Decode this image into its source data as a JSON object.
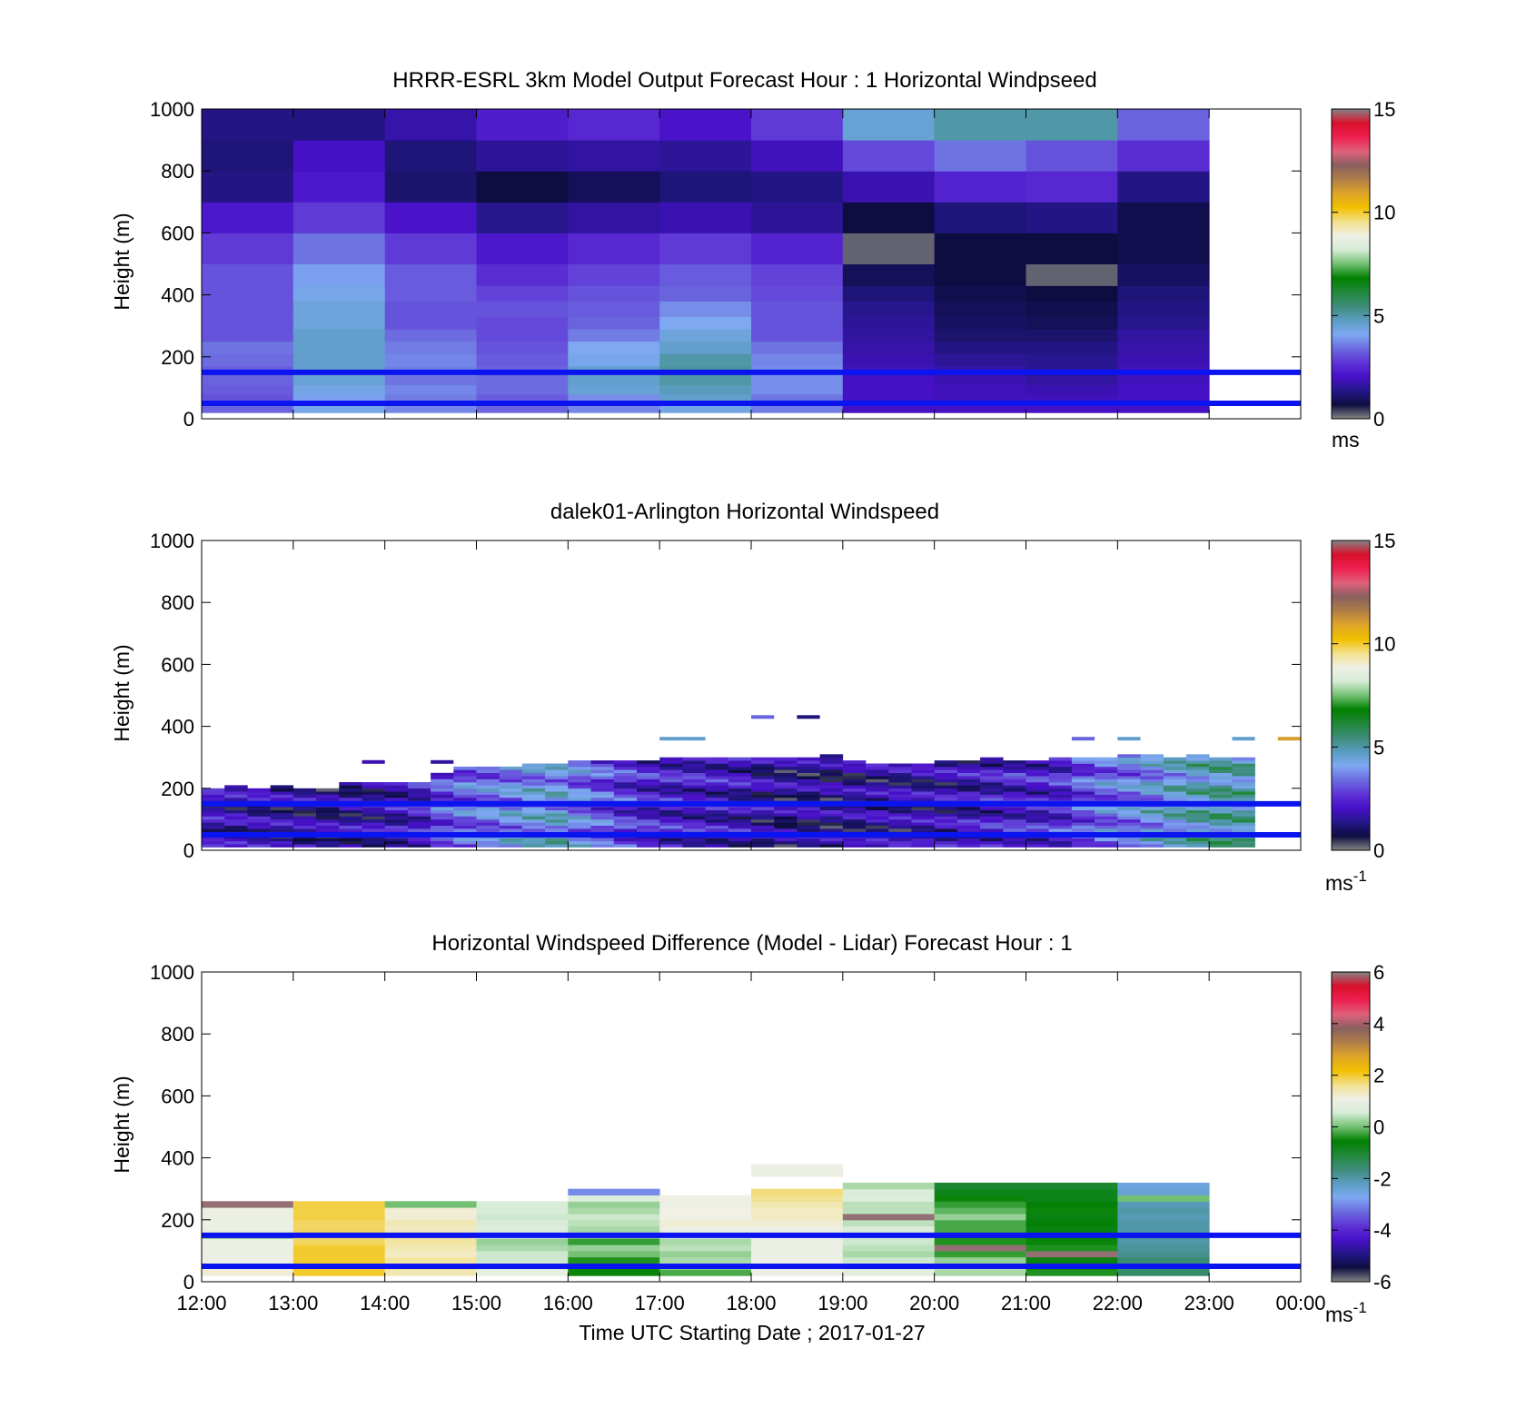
{
  "colors": {
    "line_blue": "#0a14f0",
    "colormap": [
      "#858585",
      "#0d0d40",
      "#25168a",
      "#4810c8",
      "#5e34d6",
      "#6c6ce0",
      "#7ea8f2",
      "#5a9cc0",
      "#3d8c78",
      "#21883a",
      "#008000",
      "#73c073",
      "#d6ecd6",
      "#f0f0e6",
      "#f2e08a",
      "#f2c000",
      "#dea428",
      "#b07e48",
      "#8a6060",
      "#e0607a",
      "#ee2050",
      "#d8102c",
      "#858585"
    ]
  },
  "x_ticks": [
    "12:00",
    "13:00",
    "14:00",
    "15:00",
    "16:00",
    "17:00",
    "18:00",
    "19:00",
    "20:00",
    "21:00",
    "22:00",
    "23:00",
    "00:00"
  ],
  "x_label": "Time UTC  Starting Date ; 2017-01-27",
  "reference_lines_m": [
    150,
    50
  ],
  "panels": [
    {
      "title": "HRRR-ESRL 3km Model Output   Forecast Hour : 1 Horizontal Windpseed",
      "ylabel": "Height (m)",
      "cbar_unit": "ms",
      "cbar_unit_sup": "",
      "cbar_range": [
        0,
        15
      ],
      "cbar_ticks": [
        "0",
        "5",
        "10",
        "15"
      ]
    },
    {
      "title": "dalek01-Arlington  Horizontal Windspeed",
      "ylabel": "Height (m)",
      "cbar_unit": "ms",
      "cbar_unit_sup": "-1",
      "cbar_range": [
        0,
        15
      ],
      "cbar_ticks": [
        "0",
        "5",
        "10",
        "15"
      ]
    },
    {
      "title": "Horizontal Windspeed Difference (Model - Lidar) Forecast Hour : 1",
      "ylabel": "Height (m)",
      "cbar_unit": "ms",
      "cbar_unit_sup": "-1",
      "cbar_range": [
        -6,
        6
      ],
      "cbar_ticks": [
        "-6",
        "-4",
        "-2",
        "0",
        "2",
        "4",
        "6"
      ]
    }
  ],
  "chart_data": [
    {
      "type": "heatmap",
      "title": "HRRR-ESRL 3km Model Output   Forecast Hour : 1 Horizontal Windpseed",
      "xlabel": "",
      "ylabel": "Height (m)",
      "x_range": [
        "12:00",
        "00:00"
      ],
      "ylim": [
        0,
        1000
      ],
      "y_ticks": [
        0,
        200,
        400,
        600,
        800,
        1000
      ],
      "value_range": [
        0,
        15
      ],
      "unit": "ms",
      "grid": false,
      "hours": [
        "12:00",
        "13:00",
        "14:00",
        "15:00",
        "16:00",
        "17:00",
        "18:00",
        "19:00",
        "20:00",
        "21:00",
        "22:00"
      ],
      "height_edges_m": [
        20,
        50,
        80,
        110,
        140,
        170,
        210,
        250,
        290,
        330,
        380,
        430,
        500,
        600,
        700,
        800,
        900,
        1000
      ],
      "speed_ms": [
        [
          4.0,
          3.5,
          3.5,
          3.5,
          3.5,
          3.5,
          3.5,
          2.0,
          2.0,
          2.0,
          2.0
        ],
        [
          3.3,
          4.2,
          3.7,
          3.3,
          3.7,
          4.3,
          3.6,
          2.0,
          2.0,
          2.0,
          2.0
        ],
        [
          3.1,
          4.0,
          3.6,
          3.2,
          3.8,
          4.6,
          3.5,
          2.0,
          1.9,
          1.9,
          2.0
        ],
        [
          3.2,
          4.3,
          3.7,
          3.4,
          4.5,
          4.8,
          3.8,
          2.0,
          1.9,
          1.8,
          2.0
        ],
        [
          3.3,
          4.5,
          3.5,
          3.4,
          4.6,
          5.0,
          3.8,
          2.0,
          1.8,
          1.6,
          1.9
        ],
        [
          3.2,
          4.6,
          3.6,
          3.3,
          4.6,
          5.1,
          3.8,
          1.9,
          1.7,
          1.5,
          1.9
        ],
        [
          3.4,
          4.6,
          3.7,
          3.2,
          4.2,
          5.0,
          3.7,
          1.8,
          1.5,
          1.4,
          1.8
        ],
        [
          3.5,
          4.6,
          3.6,
          3.1,
          4.1,
          4.6,
          3.5,
          1.7,
          1.3,
          1.3,
          1.7
        ],
        [
          3.1,
          4.6,
          3.4,
          3.0,
          3.6,
          4.4,
          3.1,
          1.6,
          1.1,
          1.1,
          1.6
        ],
        [
          3.1,
          4.4,
          3.1,
          3.0,
          3.3,
          4.1,
          3.1,
          1.5,
          1.0,
          0.9,
          1.4
        ],
        [
          3.1,
          4.4,
          3.1,
          3.1,
          3.2,
          3.8,
          3.1,
          1.4,
          0.9,
          0.8,
          1.3
        ],
        [
          3.1,
          4.2,
          3.2,
          2.9,
          3.1,
          3.3,
          3.0,
          1.2,
          0.8,
          0.7,
          1.2
        ],
        [
          3.1,
          4.0,
          3.2,
          2.6,
          2.9,
          3.2,
          2.9,
          0.9,
          0.7,
          0.2,
          1.0
        ],
        [
          2.8,
          3.5,
          2.8,
          2.2,
          2.5,
          2.8,
          2.4,
          0.2,
          0.7,
          0.7,
          0.8
        ],
        [
          2.2,
          2.8,
          2.1,
          1.4,
          1.6,
          1.8,
          1.5,
          0.7,
          1.2,
          1.3,
          0.8
        ],
        [
          1.3,
          2.2,
          1.1,
          0.7,
          0.9,
          1.2,
          1.3,
          1.8,
          2.4,
          2.5,
          1.3
        ],
        [
          1.2,
          2.0,
          1.2,
          1.5,
          1.6,
          1.5,
          1.9,
          3.0,
          3.5,
          3.1,
          2.6
        ],
        [
          1.3,
          1.3,
          1.7,
          2.3,
          2.5,
          2.1,
          2.8,
          4.5,
          5.0,
          5.0,
          3.3
        ]
      ],
      "reference_lines_m": [
        150,
        50
      ]
    },
    {
      "type": "heatmap",
      "title": "dalek01-Arlington  Horizontal Windspeed",
      "xlabel": "",
      "ylabel": "Height (m)",
      "x_range": [
        "12:00",
        "00:00"
      ],
      "ylim": [
        0,
        1000
      ],
      "y_ticks": [
        0,
        200,
        400,
        600,
        800,
        1000
      ],
      "value_range": [
        0,
        15
      ],
      "unit": "ms-1",
      "grid": false,
      "time_bins": 48,
      "time_bin_minutes": 15,
      "first_bin_start": "12:00",
      "profile_top_m": [
        200,
        205,
        200,
        205,
        200,
        200,
        215,
        215,
        215,
        215,
        250,
        270,
        270,
        270,
        280,
        280,
        290,
        290,
        290,
        290,
        300,
        300,
        300,
        300,
        300,
        300,
        300,
        310,
        290,
        280,
        280,
        280,
        285,
        290,
        300,
        290,
        290,
        300,
        300,
        300,
        310,
        310,
        300,
        310,
        300,
        300,
        0,
        0
      ],
      "mean_speed_low_ms": [
        1.8,
        1.7,
        1.6,
        1.6,
        1.5,
        1.6,
        1.7,
        1.8,
        2.0,
        2.4,
        3.2,
        3.5,
        3.6,
        4.0,
        4.2,
        4.5,
        3.6,
        3.2,
        2.6,
        2.4,
        2.2,
        2.1,
        2.0,
        1.9,
        1.6,
        1.5,
        1.5,
        1.4,
        1.5,
        1.6,
        1.6,
        1.7,
        1.8,
        2.0,
        2.2,
        2.4,
        2.4,
        2.6,
        3.2,
        3.6,
        3.8,
        4.2,
        4.5,
        4.8,
        5.0,
        4.9,
        0,
        0
      ],
      "mean_speed_high_ms": [
        1.8,
        1.7,
        1.7,
        1.6,
        1.5,
        1.5,
        1.6,
        1.7,
        1.9,
        2.2,
        2.8,
        3.3,
        3.4,
        3.6,
        3.8,
        3.8,
        3.4,
        3.0,
        2.6,
        2.3,
        2.2,
        2.2,
        2.1,
        2.0,
        1.6,
        1.5,
        1.4,
        1.3,
        1.4,
        1.5,
        1.6,
        1.6,
        1.7,
        1.8,
        2.0,
        2.2,
        2.2,
        2.4,
        3.0,
        3.4,
        3.5,
        3.8,
        4.3,
        4.6,
        4.8,
        4.7,
        0,
        0
      ],
      "isolated_returns": [
        {
          "time": "13:45",
          "height_m": 285,
          "speed_ms": 1.8
        },
        {
          "time": "14:30",
          "height_m": 285,
          "speed_ms": 1.6
        },
        {
          "time": "17:00",
          "height_m": 360,
          "speed_ms": 4.6
        },
        {
          "time": "17:15",
          "height_m": 360,
          "speed_ms": 4.6
        },
        {
          "time": "18:00",
          "height_m": 430,
          "speed_ms": 3.3
        },
        {
          "time": "18:30",
          "height_m": 430,
          "speed_ms": 1.2
        },
        {
          "time": "21:30",
          "height_m": 360,
          "speed_ms": 3.3
        },
        {
          "time": "22:00",
          "height_m": 360,
          "speed_ms": 4.6
        },
        {
          "time": "23:15",
          "height_m": 360,
          "speed_ms": 4.6
        },
        {
          "time": "23:45",
          "height_m": 360,
          "speed_ms": 11.0
        }
      ],
      "reference_lines_m": [
        150,
        50
      ]
    },
    {
      "type": "heatmap",
      "title": "Horizontal Windspeed Difference (Model - Lidar) Forecast Hour : 1",
      "xlabel": "Time UTC  Starting Date ; 2017-01-27",
      "ylabel": "Height (m)",
      "x_range": [
        "12:00",
        "00:00"
      ],
      "ylim": [
        0,
        1000
      ],
      "y_ticks": [
        0,
        200,
        400,
        600,
        800,
        1000
      ],
      "value_range": [
        -6,
        6
      ],
      "unit": "ms-1",
      "grid": false,
      "hours": [
        "12:00",
        "13:00",
        "14:00",
        "15:00",
        "16:00",
        "17:00",
        "18:00",
        "19:00",
        "20:00",
        "21:00",
        "22:00"
      ],
      "height_edges_m": [
        20,
        40,
        60,
        80,
        100,
        120,
        140,
        160,
        180,
        200,
        220,
        240,
        260,
        280,
        300,
        320,
        340,
        360
      ],
      "diff_ms": [
        [
          1.2,
          2.0,
          1.4,
          0.9,
          -0.5,
          -0.2,
          1.0,
          0.8,
          0.3,
          -0.4,
          -1.5
        ],
        [
          1.2,
          2.0,
          1.6,
          0.6,
          -0.5,
          0.2,
          1.0,
          0.6,
          0.4,
          -0.5,
          -1.6
        ],
        [
          1.0,
          2.0,
          1.5,
          0.5,
          -0.4,
          0.3,
          1.0,
          0.5,
          0.2,
          -0.7,
          -1.6
        ],
        [
          1.0,
          2.0,
          1.3,
          0.5,
          0.0,
          0.2,
          1.0,
          0.3,
          -0.3,
          5.9,
          -1.8
        ],
        [
          1.0,
          2.0,
          1.4,
          0.3,
          0.2,
          0.4,
          1.0,
          0.4,
          5.9,
          -0.4,
          -1.9
        ],
        [
          1.0,
          1.8,
          1.5,
          0.2,
          -0.3,
          0.3,
          1.0,
          0.5,
          -0.4,
          -0.5,
          -2.0
        ],
        [
          0.0,
          1.8,
          1.5,
          0.6,
          0.2,
          0.8,
          1.0,
          0.8,
          -0.4,
          -0.6,
          -1.9
        ],
        [
          1.0,
          1.8,
          1.3,
          0.7,
          0.3,
          1.0,
          1.0,
          0.6,
          -0.2,
          -0.7,
          -2.0
        ],
        [
          1.0,
          1.8,
          1.4,
          0.6,
          0.4,
          1.2,
          1.2,
          0.4,
          -0.2,
          -0.6,
          -2.0
        ],
        [
          1.0,
          1.9,
          1.2,
          0.5,
          0.5,
          1.1,
          1.3,
          5.9,
          0.2,
          -0.7,
          -2.1
        ],
        [
          1.0,
          1.9,
          1.2,
          0.6,
          0.3,
          1.1,
          1.3,
          0.4,
          -0.1,
          -0.5,
          -2.0
        ],
        [
          5.9,
          1.9,
          0.0,
          0.6,
          0.2,
          1.0,
          1.4,
          0.4,
          -0.3,
          -0.6,
          -2.1
        ],
        [
          null,
          null,
          null,
          null,
          0.7,
          1.1,
          1.6,
          0.7,
          -0.5,
          -0.8,
          0.0
        ],
        [
          null,
          null,
          null,
          null,
          -3.0,
          null,
          1.7,
          0.6,
          -0.8,
          -0.8,
          -2.4
        ],
        [
          null,
          null,
          null,
          null,
          null,
          null,
          null,
          0.3,
          -1.0,
          -1.0,
          -2.5
        ],
        [
          null,
          null,
          null,
          null,
          null,
          null,
          null,
          null,
          null,
          null,
          null
        ],
        [
          null,
          null,
          null,
          null,
          null,
          null,
          1.0,
          null,
          null,
          null,
          null
        ],
        [
          null,
          null,
          null,
          null,
          null,
          null,
          1.0,
          null,
          null,
          null,
          null
        ]
      ],
      "reference_lines_m": [
        150,
        50
      ]
    }
  ]
}
